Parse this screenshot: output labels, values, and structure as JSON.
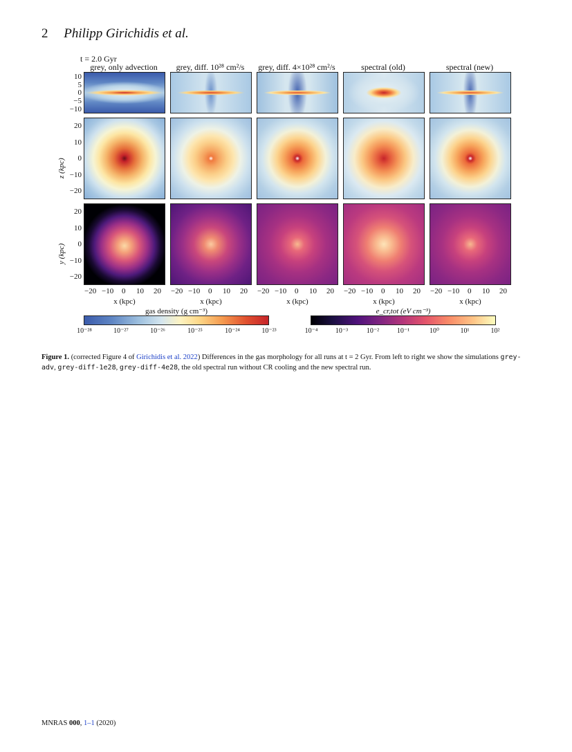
{
  "header": {
    "page_number": "2",
    "authors": "Philipp Girichidis et al."
  },
  "figure": {
    "time_label": "t = 2.0 Gyr",
    "columns": [
      {
        "title": "grey, only advection"
      },
      {
        "title": "grey, diff. 10²⁸ cm²/s"
      },
      {
        "title": "grey, diff. 4×10²⁸ cm²/s"
      },
      {
        "title": "spectral (old)"
      },
      {
        "title": "spectral (new)"
      }
    ],
    "row1_yticks": [
      "10",
      "5",
      "0",
      "−5",
      "−10"
    ],
    "row23_yticks": [
      "20",
      "10",
      "0",
      "−10",
      "−20"
    ],
    "xticks": [
      "−20",
      "−10",
      "0",
      "10",
      "20"
    ],
    "row2_ylabel": "z (kpc)",
    "row3_ylabel": "y (kpc)",
    "xlabel": "x (kpc)",
    "colorbar_density": {
      "label": "gas density (g cm⁻³)",
      "ticks": [
        "10⁻²⁸",
        "10⁻²⁷",
        "10⁻²⁶",
        "10⁻²⁵",
        "10⁻²⁴",
        "10⁻²³"
      ]
    },
    "colorbar_cr": {
      "label": "e_cr,tot (eV cm⁻³)",
      "ticks": [
        "10⁻⁴",
        "10⁻³",
        "10⁻²",
        "10⁻¹",
        "10⁰",
        "10¹",
        "10²"
      ]
    }
  },
  "caption": {
    "label": "Figure 1.",
    "text_1": " (corrected Figure 4 of ",
    "ref": "Girichidis et al. 2022",
    "text_2": ") Differences in the gas morphology for all runs at t = 2 Gyr. From left to right we show the simulations ",
    "sim1": "grey-adv",
    "sep1": ", ",
    "sim2": "grey-diff-1e28",
    "sep2": ", ",
    "sim3": "grey-diff-4e28",
    "text_3": ", the old spectral run without CR cooling and the new spectral run."
  },
  "footer": {
    "journal": "MNRAS ",
    "volume": "000",
    "sep": ", ",
    "pages": "1–1",
    "year": " (2020)"
  },
  "colors": {
    "density_low": "#3b5bab",
    "density_mid": "#fdf3c2",
    "density_high": "#c6242a",
    "cr_low": "#000004",
    "cr_mid": "#e3546b",
    "cr_high": "#fcfdbf",
    "link": "#1a3ec7"
  }
}
